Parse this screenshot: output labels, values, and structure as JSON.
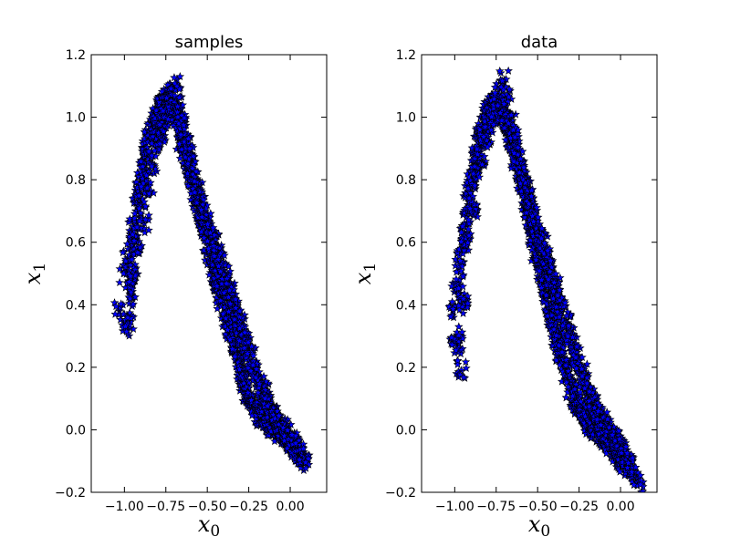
{
  "chart_data": [
    {
      "type": "scatter",
      "title": "samples",
      "xlabel": {
        "base": "x",
        "sub": "0"
      },
      "ylabel": {
        "base": "x",
        "sub": "1"
      },
      "xlim": [
        -1.2,
        0.22
      ],
      "ylim": [
        -0.2,
        1.2
      ],
      "xticks": [
        -1.0,
        -0.75,
        -0.5,
        -0.25,
        0.0
      ],
      "xtick_labels": [
        "−1.00",
        "−0.75",
        "−0.50",
        "−0.25",
        "0.00"
      ],
      "yticks": [
        -0.2,
        0.0,
        0.2,
        0.4,
        0.6,
        0.8,
        1.0,
        1.2
      ],
      "ytick_labels": [
        "−0.2",
        "0.0",
        "0.2",
        "0.4",
        "0.6",
        "0.8",
        "1.0",
        "1.2"
      ],
      "marker": "star",
      "marker_color": "#0000ff",
      "marker_edge_color": "#000000",
      "grid": false,
      "series": [
        {
          "x": [
            -1.0,
            -0.98,
            -0.96,
            -0.97,
            -0.95,
            -0.93,
            -0.94,
            -0.92,
            -0.91,
            -0.9,
            -0.89,
            -0.88,
            -0.87,
            -0.86,
            -0.85,
            -0.84,
            -0.83,
            -0.82,
            -0.81,
            -0.8,
            -0.79,
            -0.78,
            -0.77,
            -0.76,
            -0.75,
            -0.74,
            -0.73,
            -0.72,
            -0.71,
            -0.7,
            -0.69,
            -0.68,
            -0.67,
            -0.66,
            -0.65,
            -0.64,
            -0.63,
            -0.62,
            -0.61,
            -0.6,
            -0.59,
            -0.58,
            -0.57,
            -0.56,
            -0.55,
            -0.54,
            -0.53,
            -0.52,
            -0.51,
            -0.5,
            -0.49,
            -0.48,
            -0.47,
            -0.46,
            -0.45,
            -0.44,
            -0.43,
            -0.42,
            -0.41,
            -0.4,
            -0.39,
            -0.38,
            -0.37,
            -0.36,
            -0.35,
            -0.34,
            -0.33,
            -0.32,
            -0.31,
            -0.3,
            -0.29,
            -0.28,
            -0.27,
            -0.26,
            -0.25,
            -0.24,
            -0.23,
            -0.22,
            -0.21,
            -0.2,
            -0.19,
            -0.18,
            -0.17,
            -0.16,
            -0.15,
            -0.14,
            -0.13,
            -0.12,
            -0.11,
            -0.1,
            -0.09,
            -0.08,
            -0.07,
            -0.06,
            -0.05,
            -0.04,
            -0.03,
            -0.02,
            -0.01,
            0.0,
            0.01,
            0.02,
            0.03,
            0.05,
            0.07,
            0.09,
            -1.03,
            -0.97,
            -0.95,
            -0.92,
            -0.88,
            -0.85,
            -0.83,
            -0.8,
            -0.78,
            -0.75,
            -0.73,
            -0.7,
            -0.68,
            -0.66,
            -0.64,
            -0.62,
            -0.6,
            -0.58,
            -0.56,
            -0.54,
            -0.52,
            -0.5,
            -0.48,
            -0.46,
            -0.44,
            -0.42,
            -0.4,
            -0.38,
            -0.36,
            -0.34,
            -0.32,
            -0.3,
            -0.28,
            -0.26,
            -0.24,
            -0.22,
            -0.2,
            -0.18,
            -0.16,
            -0.14,
            -0.12,
            -0.1,
            -0.08,
            -0.06,
            -0.04,
            -0.02,
            0.0,
            0.02,
            0.04,
            0.06,
            -0.99,
            -0.96,
            -0.93,
            -0.9,
            -0.87,
            -0.84,
            -0.81,
            -0.79,
            -0.77,
            -0.74,
            -0.72,
            -0.69,
            -0.67,
            -0.65,
            -0.63,
            -0.61,
            -0.59,
            -0.57,
            -0.55,
            -0.53,
            -0.51,
            -0.49,
            -0.47,
            -0.45,
            -0.43,
            -0.41,
            -0.39,
            -0.37,
            -0.35,
            -0.33,
            -0.31,
            -0.29,
            -0.27,
            -0.25,
            -0.23,
            -0.21,
            -0.19,
            -0.17,
            -0.15,
            -0.13,
            -0.11,
            -0.09,
            -0.07,
            -0.05,
            -0.03,
            -0.01,
            0.01,
            0.03,
            0.05,
            0.08
          ],
          "y": [
            0.5,
            0.55,
            0.6,
            0.45,
            0.65,
            0.7,
            0.52,
            0.75,
            0.78,
            0.82,
            0.85,
            0.88,
            0.9,
            0.93,
            0.95,
            0.97,
            0.98,
            1.0,
            1.01,
            1.02,
            1.03,
            1.04,
            1.05,
            1.06,
            1.06,
            1.05,
            1.05,
            1.04,
            1.03,
            1.02,
            1.01,
            1.0,
            0.99,
            0.97,
            0.95,
            0.93,
            0.91,
            0.88,
            0.86,
            0.84,
            0.81,
            0.79,
            0.76,
            0.74,
            0.71,
            0.69,
            0.66,
            0.64,
            0.62,
            0.6,
            0.57,
            0.55,
            0.53,
            0.51,
            0.49,
            0.47,
            0.45,
            0.43,
            0.41,
            0.39,
            0.37,
            0.35,
            0.33,
            0.31,
            0.29,
            0.27,
            0.25,
            0.23,
            0.21,
            0.19,
            0.17,
            0.15,
            0.14,
            0.12,
            0.11,
            0.1,
            0.09,
            0.08,
            0.07,
            0.06,
            0.05,
            0.04,
            0.04,
            0.03,
            0.03,
            0.02,
            0.02,
            0.01,
            0.01,
            0.0,
            0.0,
            0.0,
            -0.01,
            -0.01,
            -0.02,
            -0.02,
            -0.03,
            -0.03,
            -0.04,
            -0.04,
            -0.05,
            -0.05,
            -0.06,
            -0.07,
            -0.08,
            -0.1,
            0.38,
            0.35,
            0.42,
            0.58,
            0.66,
            0.78,
            0.85,
            0.92,
            0.95,
            1.0,
            0.99,
            1.01,
            0.96,
            0.92,
            0.89,
            0.86,
            0.83,
            0.8,
            0.77,
            0.74,
            0.7,
            0.67,
            0.63,
            0.61,
            0.58,
            0.54,
            0.51,
            0.48,
            0.45,
            0.41,
            0.38,
            0.34,
            0.31,
            0.27,
            0.24,
            0.2,
            0.18,
            0.15,
            0.13,
            0.1,
            0.08,
            0.06,
            0.04,
            0.02,
            0.01,
            -0.01,
            -0.03,
            -0.04,
            -0.06,
            -0.08,
            0.33,
            0.48,
            0.62,
            0.72,
            0.8,
            0.87,
            0.93,
            0.98,
            1.0,
            1.02,
            1.08,
            1.1,
            1.04,
            0.98,
            0.91,
            0.88,
            0.8,
            0.78,
            0.72,
            0.7,
            0.65,
            0.63,
            0.6,
            0.55,
            0.52,
            0.5,
            0.46,
            0.44,
            0.4,
            0.36,
            0.33,
            0.3,
            0.26,
            0.22,
            0.19,
            0.17,
            0.14,
            0.12,
            0.09,
            0.08,
            0.05,
            0.03,
            0.02,
            0.0,
            -0.01,
            -0.02,
            -0.04,
            -0.06,
            -0.07,
            -0.09
          ]
        }
      ]
    },
    {
      "type": "scatter",
      "title": "data",
      "xlabel": {
        "base": "x",
        "sub": "0"
      },
      "ylabel": {
        "base": "x",
        "sub": "1"
      },
      "xlim": [
        -1.2,
        0.22
      ],
      "ylim": [
        -0.2,
        1.2
      ],
      "xticks": [
        -1.0,
        -0.75,
        -0.5,
        -0.25,
        0.0
      ],
      "xtick_labels": [
        "−1.00",
        "−0.75",
        "−0.50",
        "−0.25",
        "0.00"
      ],
      "yticks": [
        -0.2,
        0.0,
        0.2,
        0.4,
        0.6,
        0.8,
        1.0,
        1.2
      ],
      "ytick_labels": [
        "−0.2",
        "0.0",
        "0.2",
        "0.4",
        "0.6",
        "0.8",
        "1.0",
        "1.2"
      ],
      "marker": "star",
      "marker_color": "#0000ff",
      "marker_edge_color": "#000000",
      "grid": false,
      "series": [
        {
          "x": [
            -1.01,
            -0.99,
            -0.97,
            -0.98,
            -0.96,
            -0.94,
            -0.95,
            -0.93,
            -0.92,
            -0.91,
            -0.9,
            -0.89,
            -0.88,
            -0.87,
            -0.86,
            -0.85,
            -0.84,
            -0.83,
            -0.82,
            -0.81,
            -0.8,
            -0.79,
            -0.78,
            -0.77,
            -0.76,
            -0.75,
            -0.74,
            -0.73,
            -0.72,
            -0.71,
            -0.7,
            -0.69,
            -0.68,
            -0.67,
            -0.66,
            -0.65,
            -0.64,
            -0.63,
            -0.62,
            -0.61,
            -0.6,
            -0.59,
            -0.58,
            -0.57,
            -0.56,
            -0.55,
            -0.54,
            -0.53,
            -0.52,
            -0.51,
            -0.5,
            -0.49,
            -0.48,
            -0.47,
            -0.46,
            -0.45,
            -0.44,
            -0.43,
            -0.42,
            -0.41,
            -0.4,
            -0.39,
            -0.38,
            -0.37,
            -0.36,
            -0.35,
            -0.34,
            -0.33,
            -0.32,
            -0.31,
            -0.3,
            -0.29,
            -0.28,
            -0.27,
            -0.26,
            -0.25,
            -0.24,
            -0.23,
            -0.22,
            -0.21,
            -0.2,
            -0.19,
            -0.18,
            -0.17,
            -0.16,
            -0.15,
            -0.14,
            -0.13,
            -0.12,
            -0.11,
            -0.1,
            -0.09,
            -0.08,
            -0.07,
            -0.06,
            -0.05,
            -0.04,
            -0.03,
            -0.02,
            -0.01,
            0.0,
            0.02,
            0.04,
            0.06,
            0.09,
            0.11,
            -0.96,
            -0.98,
            -0.95,
            -0.93,
            -0.89,
            -0.86,
            -0.84,
            -0.81,
            -0.79,
            -0.76,
            -0.74,
            -0.71,
            -0.69,
            -0.67,
            -0.65,
            -0.63,
            -0.61,
            -0.59,
            -0.57,
            -0.55,
            -0.53,
            -0.51,
            -0.49,
            -0.47,
            -0.45,
            -0.43,
            -0.41,
            -0.39,
            -0.37,
            -0.35,
            -0.33,
            -0.31,
            -0.29,
            -0.27,
            -0.25,
            -0.23,
            -0.21,
            -0.19,
            -0.17,
            -0.15,
            -0.13,
            -0.11,
            -0.09,
            -0.07,
            -0.05,
            -0.03,
            -0.01,
            0.01,
            0.03,
            0.05,
            -1.0,
            -0.97,
            -0.94,
            -0.91,
            -0.88,
            -0.85,
            -0.82,
            -0.8,
            -0.78,
            -0.75,
            -0.73,
            -0.7,
            -0.68,
            -0.66,
            -0.64,
            -0.62,
            -0.6,
            -0.58,
            -0.56,
            -0.54,
            -0.52,
            -0.5,
            -0.48,
            -0.46,
            -0.44,
            -0.42,
            -0.4,
            -0.38,
            -0.36,
            -0.34,
            -0.32,
            -0.3,
            -0.28,
            -0.26,
            -0.24,
            -0.22,
            -0.2,
            -0.18,
            -0.16,
            -0.14,
            -0.12,
            -0.1,
            -0.08,
            -0.06,
            -0.04,
            -0.02,
            0.0,
            0.02,
            0.04,
            0.07
          ],
          "y": [
            0.38,
            0.45,
            0.52,
            0.3,
            0.58,
            0.63,
            0.42,
            0.68,
            0.72,
            0.76,
            0.8,
            0.83,
            0.86,
            0.89,
            0.92,
            0.94,
            0.96,
            0.98,
            1.0,
            1.01,
            1.02,
            1.03,
            1.04,
            1.05,
            1.05,
            1.04,
            1.04,
            1.03,
            1.02,
            1.01,
            1.0,
            0.99,
            0.98,
            0.96,
            0.94,
            0.92,
            0.9,
            0.87,
            0.85,
            0.83,
            0.8,
            0.78,
            0.75,
            0.73,
            0.7,
            0.68,
            0.65,
            0.62,
            0.6,
            0.57,
            0.55,
            0.52,
            0.5,
            0.48,
            0.45,
            0.43,
            0.41,
            0.39,
            0.36,
            0.34,
            0.32,
            0.3,
            0.28,
            0.26,
            0.24,
            0.22,
            0.2,
            0.18,
            0.16,
            0.15,
            0.13,
            0.12,
            0.1,
            0.09,
            0.08,
            0.07,
            0.06,
            0.05,
            0.04,
            0.03,
            0.03,
            0.02,
            0.01,
            0.01,
            0.0,
            0.0,
            -0.01,
            -0.01,
            -0.02,
            -0.02,
            -0.03,
            -0.03,
            -0.04,
            -0.04,
            -0.05,
            -0.05,
            -0.06,
            -0.07,
            -0.08,
            -0.09,
            -0.1,
            -0.11,
            -0.12,
            -0.13,
            -0.15,
            -0.17,
            0.19,
            0.25,
            0.4,
            0.6,
            0.7,
            0.82,
            0.88,
            0.92,
            0.97,
            1.0,
            1.0,
            1.01,
            0.97,
            0.93,
            0.9,
            0.86,
            0.84,
            0.8,
            0.77,
            0.74,
            0.71,
            0.66,
            0.63,
            0.6,
            0.56,
            0.53,
            0.5,
            0.46,
            0.42,
            0.39,
            0.35,
            0.32,
            0.28,
            0.24,
            0.21,
            0.18,
            0.15,
            0.12,
            0.1,
            0.07,
            0.05,
            0.03,
            0.01,
            -0.01,
            -0.02,
            -0.03,
            -0.05,
            -0.07,
            -0.09,
            -0.11,
            0.28,
            0.48,
            0.62,
            0.72,
            0.8,
            0.87,
            0.93,
            0.98,
            1.0,
            1.03,
            1.09,
            1.12,
            1.06,
            0.98,
            0.93,
            0.88,
            0.82,
            0.78,
            0.74,
            0.7,
            0.66,
            0.63,
            0.59,
            0.55,
            0.52,
            0.49,
            0.45,
            0.42,
            0.38,
            0.35,
            0.31,
            0.28,
            0.24,
            0.21,
            0.18,
            0.15,
            0.12,
            0.1,
            0.07,
            0.05,
            0.03,
            0.01,
            -0.01,
            -0.02,
            -0.03,
            -0.05,
            -0.06,
            -0.08,
            -0.1,
            -0.12
          ]
        }
      ]
    }
  ]
}
